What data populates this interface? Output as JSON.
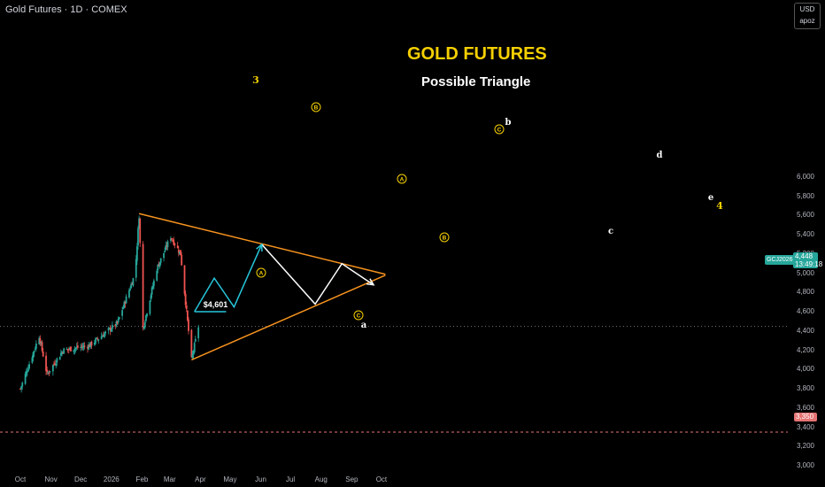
{
  "header": {
    "symbol_title": "Gold Futures · 1D · COMEX"
  },
  "overlay": {
    "title": "GOLD FUTURES",
    "subtitle": "Possible Triangle"
  },
  "price_scale": {
    "currency": "USD",
    "account": "apoz",
    "labels": [
      "6,000",
      "5,800",
      "5,600",
      "5,400",
      "5,200",
      "5,000",
      "4,800",
      "4,600",
      "4,400",
      "4,200",
      "4,000",
      "3,800",
      "3,600",
      "3,400",
      "3,200",
      "3,000"
    ],
    "current_price": "4,448",
    "countdown": "13:49:18",
    "symbol_badge": "GCJ2026",
    "support_price": "3,350"
  },
  "time_axis": {
    "labels": [
      "Oct",
      "Nov",
      "Dec",
      "2026",
      "Feb",
      "Mar",
      "Apr",
      "May",
      "Jun",
      "Jul",
      "Aug",
      "Sep",
      "Oct"
    ]
  },
  "annotations": {
    "price_label": "$4,601",
    "wave_3": "3",
    "wave_4": "4",
    "circled_A": "A",
    "circled_B": "B",
    "circled_C": "C",
    "wave_a": "a",
    "wave_b": "b",
    "wave_c": "c",
    "wave_d": "d",
    "wave_e": "e"
  },
  "colors": {
    "background": "#000000",
    "up_candle": "#26a69a",
    "down_candle": "#ef5350",
    "trendline": "#f7931e",
    "projection_cyan": "#26c6da",
    "projection_white": "#ffffff",
    "wave_label": "#f5d000"
  },
  "chart_data": {
    "type": "candlestick",
    "title": "GOLD FUTURES",
    "subtitle": "Possible Triangle",
    "y_range": [
      3000,
      6000
    ],
    "x_range": [
      "2025-10-01",
      "2026-10-05"
    ],
    "approx_closes": [
      {
        "date": "2025-10-01",
        "close": 3800
      },
      {
        "date": "2025-10-20",
        "close": 4350
      },
      {
        "date": "2025-10-28",
        "close": 3950
      },
      {
        "date": "2025-11-13",
        "close": 4200
      },
      {
        "date": "2025-12-10",
        "close": 4250
      },
      {
        "date": "2026-01-07",
        "close": 4480
      },
      {
        "date": "2026-01-25",
        "close": 5000
      },
      {
        "date": "2026-01-29",
        "close": 5600
      },
      {
        "date": "2026-02-02",
        "close": 4430
      },
      {
        "date": "2026-02-16",
        "close": 5050
      },
      {
        "date": "2026-03-02",
        "close": 5380
      },
      {
        "date": "2026-03-12",
        "close": 5200
      },
      {
        "date": "2026-03-23",
        "close": 4100
      },
      {
        "date": "2026-03-30",
        "close": 4448
      }
    ],
    "trendline_upper": [
      {
        "date": "2026-01-29",
        "price": 5620
      },
      {
        "date": "2026-10-05",
        "price": 4990
      }
    ],
    "trendline_lower": [
      {
        "date": "2026-03-23",
        "price": 4100
      },
      {
        "date": "2026-10-05",
        "price": 4980
      }
    ],
    "projection_cyan": [
      {
        "date": "2026-03-26",
        "price": 4601
      },
      {
        "date": "2026-04-15",
        "price": 4950
      },
      {
        "date": "2026-05-05",
        "price": 4650
      },
      {
        "date": "2026-06-02",
        "price": 5300
      }
    ],
    "projection_white": [
      {
        "date": "2026-06-02",
        "price": 5300
      },
      {
        "date": "2026-07-26",
        "price": 4680
      },
      {
        "date": "2026-08-22",
        "price": 5100
      },
      {
        "date": "2026-09-23",
        "price": 4880
      }
    ],
    "level_lines": [
      {
        "price": 4601,
        "label": "$4,601"
      },
      {
        "price": 4448
      },
      {
        "price": 3350
      }
    ]
  }
}
